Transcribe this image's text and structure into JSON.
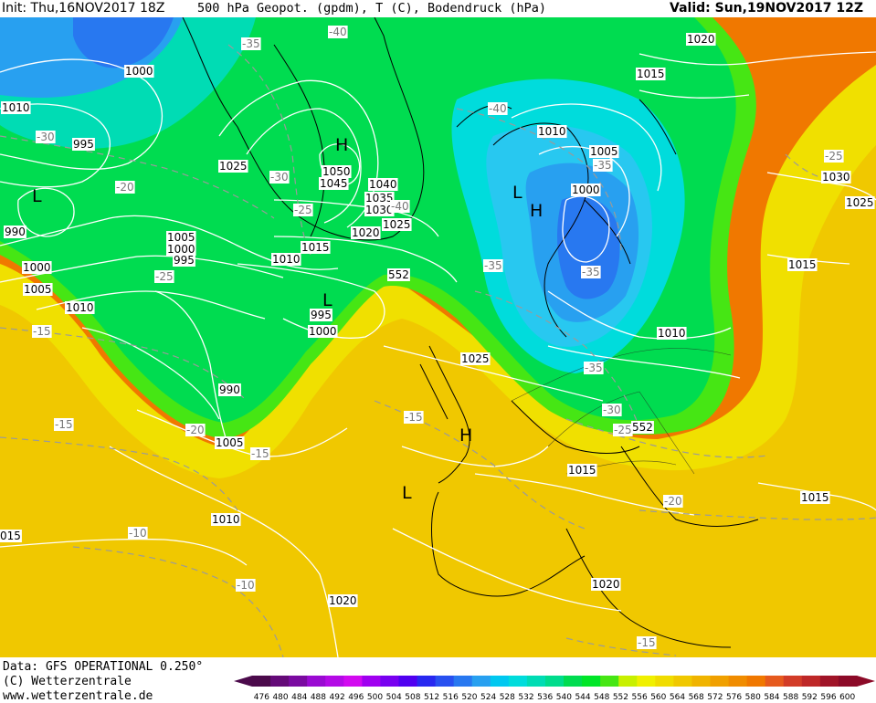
{
  "header": {
    "init": "Init: Thu,16NOV2017 18Z",
    "title": "500 hPa Geopot. (gpdm), T (C), Bodendruck (hPa)",
    "valid": "Valid: Sun,19NOV2017 12Z"
  },
  "footer": {
    "data_line": "Data: GFS OPERATIONAL 0.250°",
    "copyright": "(C) Wetterzentrale",
    "url": "www.wetterzentrale.de"
  },
  "colorbar": {
    "ticks": [
      "476",
      "480",
      "484",
      "488",
      "492",
      "496",
      "500",
      "504",
      "508",
      "512",
      "516",
      "520",
      "524",
      "528",
      "532",
      "536",
      "540",
      "544",
      "548",
      "552",
      "556",
      "560",
      "564",
      "568",
      "572",
      "576",
      "580",
      "584",
      "588",
      "592",
      "596",
      "600"
    ],
    "colors": [
      "#4b0a4b",
      "#640a78",
      "#7a0aa0",
      "#9a0ad2",
      "#b40ae6",
      "#d20af0",
      "#a000f0",
      "#7800f0",
      "#5000f0",
      "#2828f0",
      "#2850f0",
      "#2878f0",
      "#28a0f0",
      "#00c8f0",
      "#00dcdc",
      "#00dcb4",
      "#00dc8c",
      "#00dc50",
      "#00e628",
      "#46e614",
      "#c8f000",
      "#f0f000",
      "#f0dc00",
      "#f0c800",
      "#f0b400",
      "#f0a000",
      "#f08c00",
      "#f07800",
      "#e65a1e",
      "#d23c28",
      "#be2828",
      "#a01428",
      "#8c0a28"
    ]
  },
  "map_labels": {
    "pressure": [
      {
        "text": "1000"
      },
      {
        "text": "1010"
      },
      {
        "text": "995"
      },
      {
        "text": "1025"
      },
      {
        "text": "1050"
      },
      {
        "text": "1045"
      },
      {
        "text": "1040"
      },
      {
        "text": "1035"
      },
      {
        "text": "1030"
      },
      {
        "text": "1025"
      },
      {
        "text": "1020"
      },
      {
        "text": "1015"
      },
      {
        "text": "1010"
      },
      {
        "text": "1005"
      },
      {
        "text": "1000"
      },
      {
        "text": "995"
      },
      {
        "text": "990"
      },
      {
        "text": "1000"
      },
      {
        "text": "1005"
      },
      {
        "text": "1010"
      },
      {
        "text": "995"
      },
      {
        "text": "1000"
      },
      {
        "text": "990"
      },
      {
        "text": "1005"
      },
      {
        "text": "1010"
      },
      {
        "text": "015"
      },
      {
        "text": "1020"
      },
      {
        "text": "1025"
      },
      {
        "text": "1015"
      },
      {
        "text": "1020"
      },
      {
        "text": "1015"
      },
      {
        "text": "1010"
      },
      {
        "text": "1005"
      },
      {
        "text": "1000"
      },
      {
        "text": "1010"
      },
      {
        "text": "1020"
      },
      {
        "text": "1015"
      },
      {
        "text": "1030"
      },
      {
        "text": "1025"
      },
      {
        "text": "1015"
      },
      {
        "text": "1015"
      },
      {
        "text": "552"
      },
      {
        "text": "552"
      }
    ],
    "temperature": [
      {
        "text": "-40"
      },
      {
        "text": "-35"
      },
      {
        "text": "-30"
      },
      {
        "text": "-30"
      },
      {
        "text": "-25"
      },
      {
        "text": "-40"
      },
      {
        "text": "-40"
      },
      {
        "text": "-20"
      },
      {
        "text": "-25"
      },
      {
        "text": "-15"
      },
      {
        "text": "-15"
      },
      {
        "text": "-20"
      },
      {
        "text": "-15"
      },
      {
        "text": "-10"
      },
      {
        "text": "-10"
      },
      {
        "text": "-15"
      },
      {
        "text": "-35"
      },
      {
        "text": "-35"
      },
      {
        "text": "-35"
      },
      {
        "text": "-35"
      },
      {
        "text": "-30"
      },
      {
        "text": "-25"
      },
      {
        "text": "-20"
      },
      {
        "text": "-15"
      },
      {
        "text": "-25"
      }
    ],
    "centers": [
      {
        "text": "H"
      },
      {
        "text": "L"
      },
      {
        "text": "L"
      },
      {
        "text": "H"
      },
      {
        "text": "L"
      },
      {
        "text": "H"
      },
      {
        "text": "L"
      }
    ]
  }
}
